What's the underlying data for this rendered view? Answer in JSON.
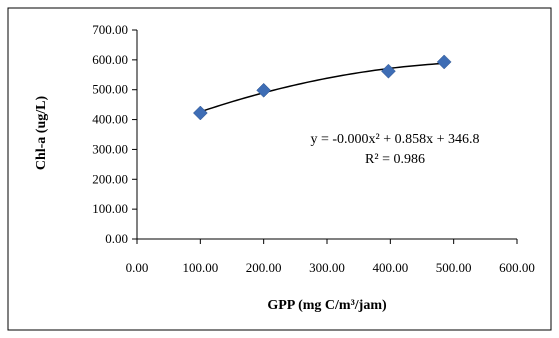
{
  "chart_data": {
    "type": "scatter",
    "xlabel": "GPP (mg C/m³/jam)",
    "ylabel": "Chl-a (ug/L)",
    "xlim": [
      0,
      600
    ],
    "ylim": [
      0,
      700
    ],
    "x_ticks": [
      "0.00",
      "100.00",
      "200.00",
      "300.00",
      "400.00",
      "500.00",
      "600.00"
    ],
    "y_ticks": [
      "0.00",
      "100.00",
      "200.00",
      "300.00",
      "400.00",
      "500.00",
      "600.00",
      "700.00"
    ],
    "series": [
      {
        "points": [
          {
            "x": 100,
            "y": 422
          },
          {
            "x": 200,
            "y": 498
          },
          {
            "x": 397,
            "y": 562
          },
          {
            "x": 485,
            "y": 593
          }
        ],
        "marker": "diamond",
        "color": "#3e6db5"
      }
    ],
    "trendline": {
      "type": "polynomial",
      "order": 2,
      "x_range": [
        100,
        485
      ],
      "color": "#000000",
      "equation_text": "y = -0.000x² + 0.858x + 346.8",
      "r2_text": "R² = 0.986"
    },
    "grid": false,
    "legend": "none"
  }
}
